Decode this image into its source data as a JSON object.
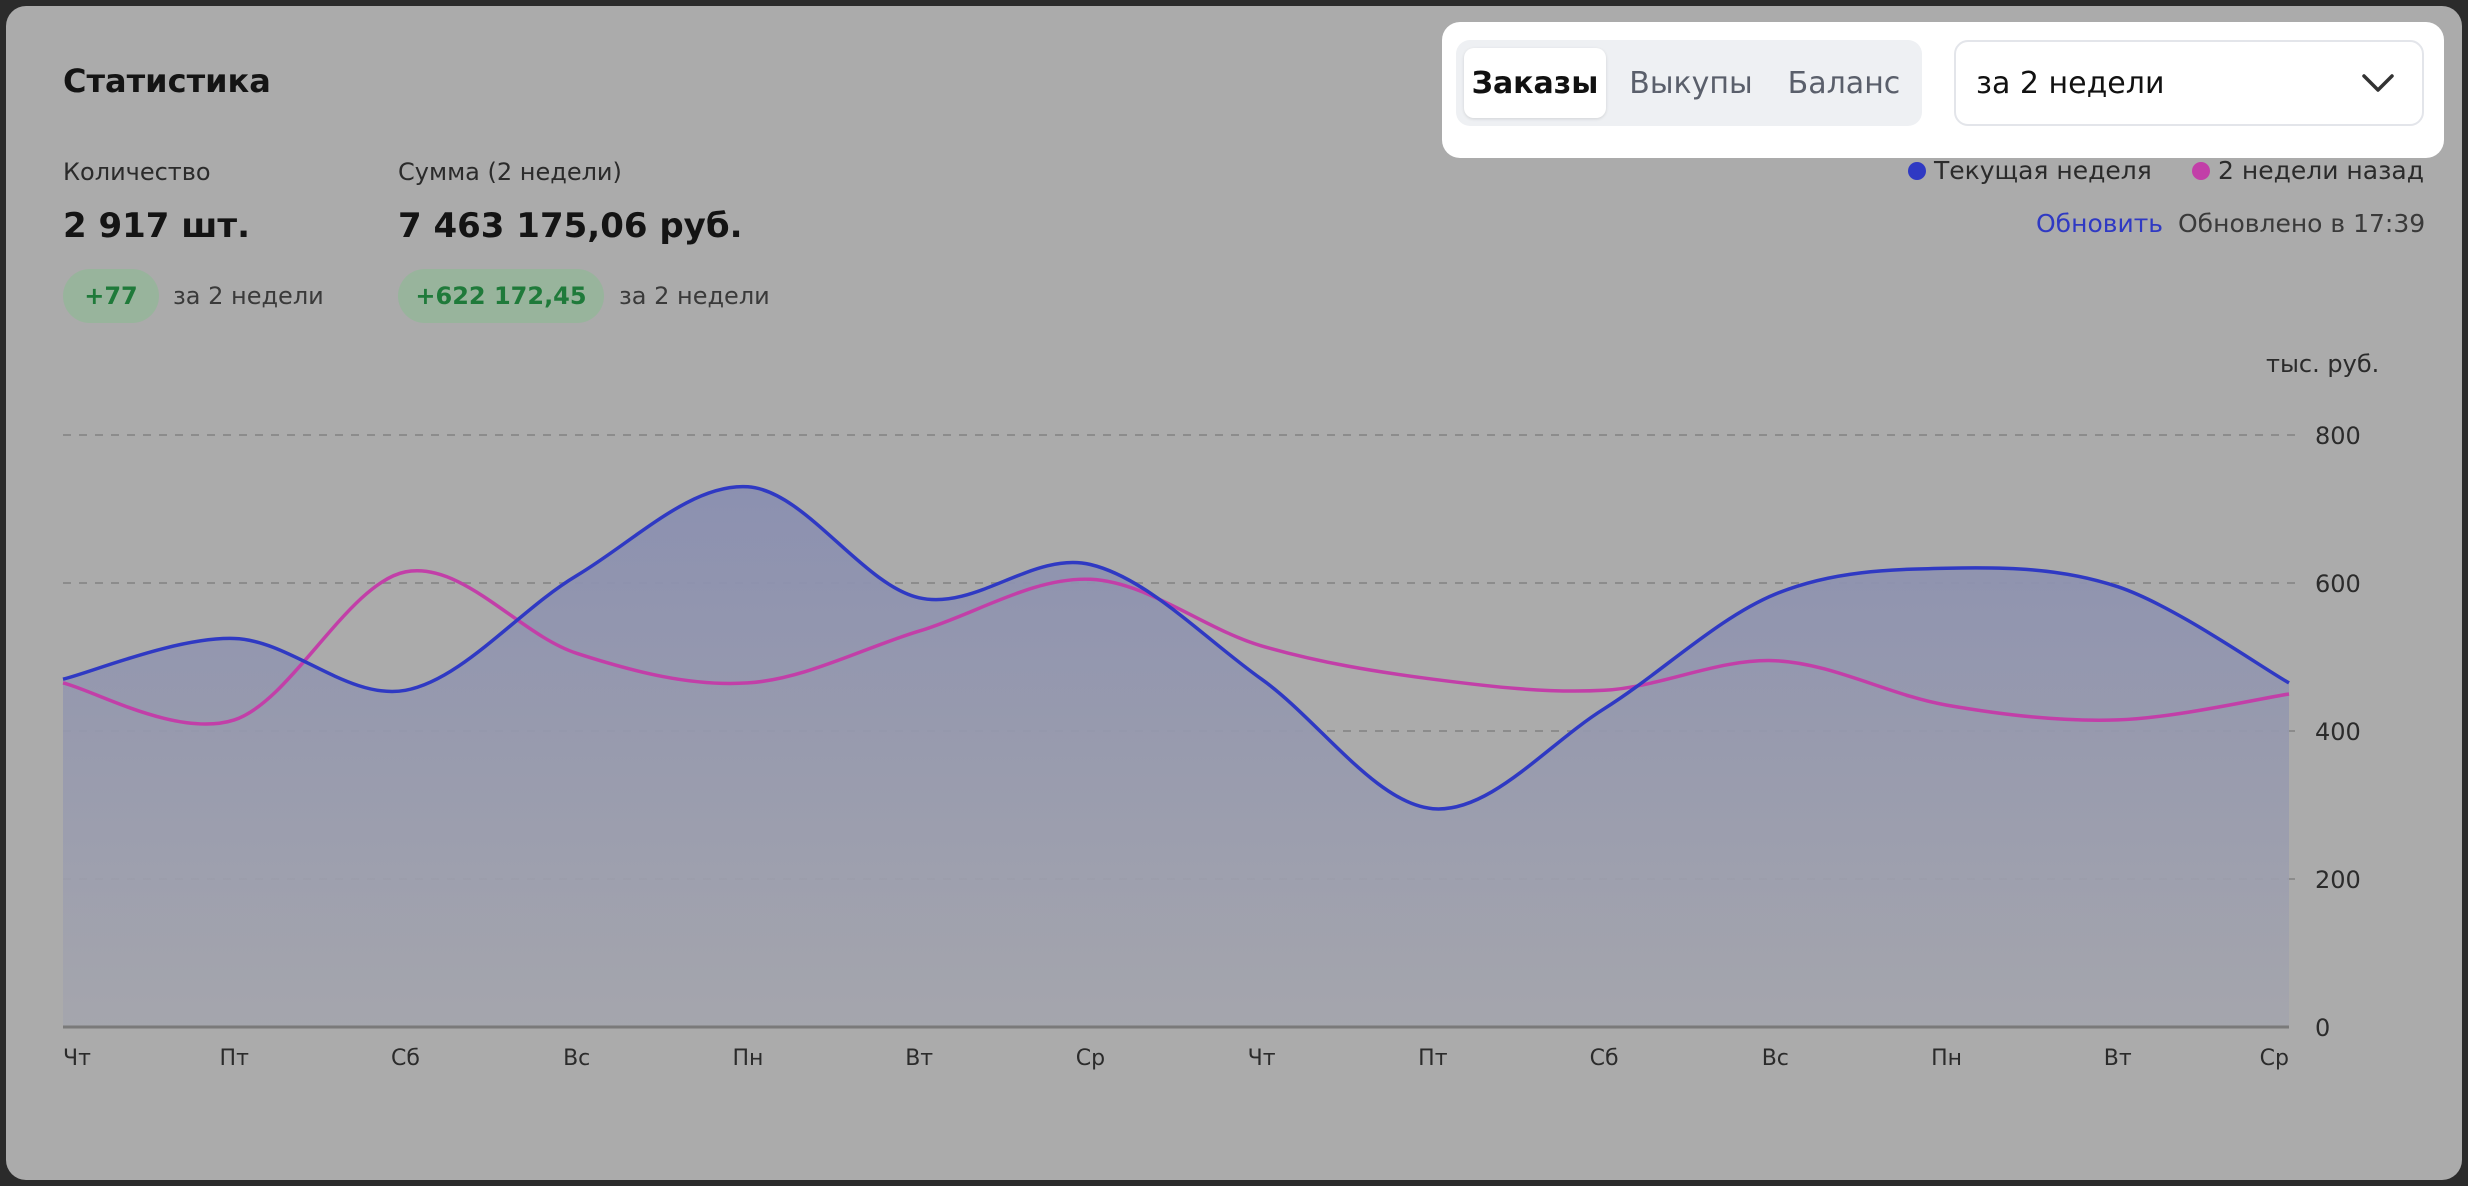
{
  "title": "Статистика",
  "metrics": [
    {
      "label": "Количество",
      "value": "2 917 шт.",
      "delta": "+77",
      "delta_note": "за 2 недели"
    },
    {
      "label": "Сумма (2 недели)",
      "value": "7 463 175,06 руб.",
      "delta": "+622 172,45",
      "delta_note": "за 2 недели"
    }
  ],
  "tabs": [
    {
      "label": "Заказы",
      "active": true
    },
    {
      "label": "Выкупы",
      "active": false
    },
    {
      "label": "Баланс",
      "active": false
    }
  ],
  "period_select": {
    "value": "за 2 недели",
    "icon": "chevron-down-icon"
  },
  "legend": [
    {
      "label": "Текущая неделя",
      "color": "#2f39c3"
    },
    {
      "label": "2 недели назад",
      "color": "#c23fa8"
    }
  ],
  "refresh_label": "Обновить",
  "updated_text": "Обновлено в 17:39",
  "chart_data": {
    "type": "area",
    "ylabel": "тыс. руб.",
    "ylim": [
      0,
      800
    ],
    "yticks": [
      0,
      200,
      400,
      600,
      800
    ],
    "grid": true,
    "legend_position": "top-right",
    "categories": [
      "Чт",
      "Пт",
      "Сб",
      "Вс",
      "Пн",
      "Вт",
      "Ср",
      "Чт",
      "Пт",
      "Сб",
      "Вс",
      "Пн",
      "Вт",
      "Ср"
    ],
    "series": [
      {
        "name": "Текущая неделя",
        "color": "#2f39c3",
        "filled": true,
        "values": [
          470,
          525,
          455,
          610,
          730,
          580,
          625,
          470,
          295,
          430,
          585,
          620,
          595,
          465
        ]
      },
      {
        "name": "2 недели назад",
        "color": "#c23fa8",
        "filled": false,
        "values": [
          465,
          415,
          615,
          505,
          465,
          535,
          605,
          515,
          470,
          455,
          495,
          435,
          415,
          450
        ]
      }
    ]
  }
}
